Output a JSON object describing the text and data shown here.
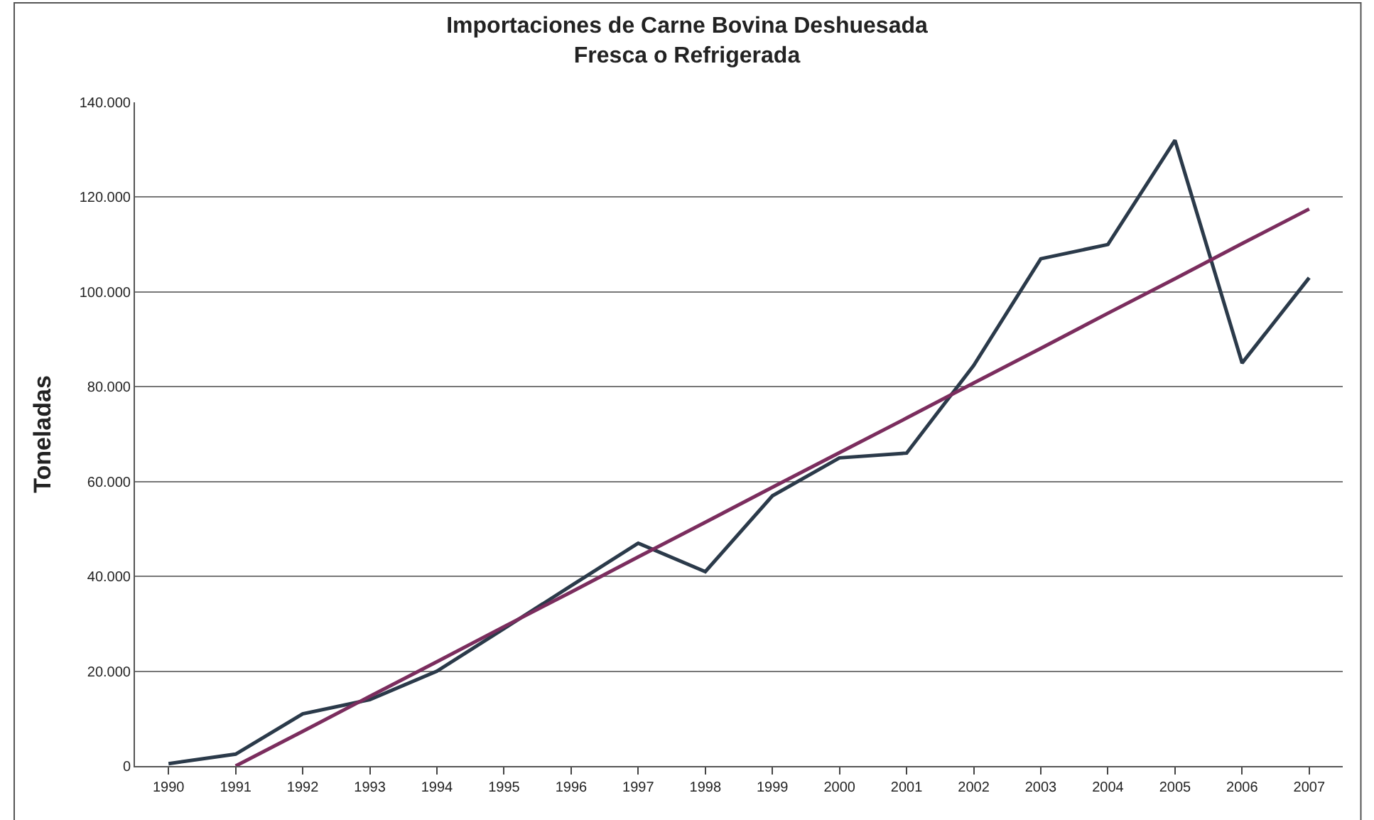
{
  "chart_data": {
    "type": "line",
    "title": "Importaciones de Carne Bovina Deshuesada",
    "subtitle": "Fresca o Refrigerada",
    "ylabel": "Toneladas",
    "categories": [
      "1990",
      "1991",
      "1992",
      "1993",
      "1994",
      "1995",
      "1996",
      "1997",
      "1998",
      "1999",
      "2000",
      "2001",
      "2002",
      "2003",
      "2004",
      "2005",
      "2006",
      "2007"
    ],
    "series": [
      {
        "color": "#2b3a4a",
        "values": [
          500,
          2500,
          11000,
          14000,
          20000,
          29000,
          38000,
          47000,
          41000,
          57000,
          65000,
          66000,
          84500,
          107000,
          110000,
          132000,
          85000,
          103000
        ]
      },
      {
        "type": "line",
        "color": "#7b2d5e",
        "values": [
          null,
          0,
          7300,
          14700,
          22000,
          29400,
          36700,
          44100,
          51400,
          58800,
          66100,
          73400,
          80800,
          88100,
          95500,
          102800,
          110200,
          117500
        ]
      }
    ],
    "ylim": [
      0,
      140000
    ],
    "yticks": [
      {
        "value": 0,
        "label": "0"
      },
      {
        "value": 20000,
        "label": "20.000"
      },
      {
        "value": 40000,
        "label": "40.000"
      },
      {
        "value": 60000,
        "label": "60.000"
      },
      {
        "value": 80000,
        "label": "80.000"
      },
      {
        "value": 100000,
        "label": "100.000"
      },
      {
        "value": 120000,
        "label": "120.000"
      },
      {
        "value": 140000,
        "label": "140.000"
      }
    ],
    "grid": "y",
    "marker": "none",
    "line_style": "solid"
  }
}
